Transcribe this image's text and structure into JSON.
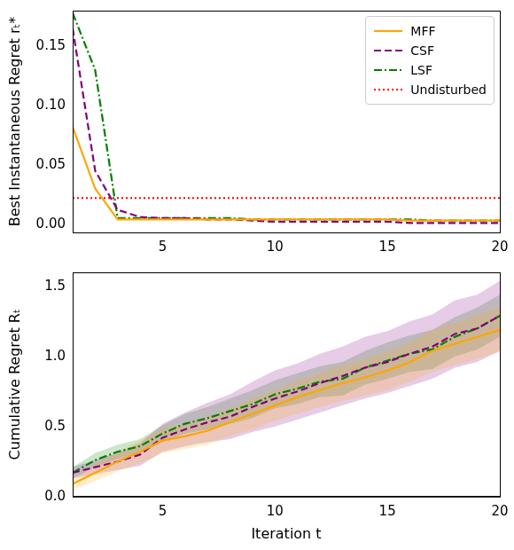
{
  "chart_data": [
    {
      "type": "line",
      "y_label": "Best Instantaneous Regret rₜ*",
      "xlim": [
        1,
        20
      ],
      "xticks": [
        5,
        10,
        15,
        20
      ],
      "ylim": [
        -0.007,
        0.18
      ],
      "yticks": [
        {
          "value": 0,
          "label": "0.00"
        },
        {
          "value": 0.05,
          "label": "0.05"
        },
        {
          "value": 0.1,
          "label": "0.10"
        },
        {
          "value": 0.15,
          "label": "0.15"
        }
      ],
      "grid": false,
      "legend": "upper right",
      "x": [
        1,
        2,
        3,
        4,
        5,
        6,
        7,
        8,
        9,
        10,
        11,
        12,
        13,
        14,
        15,
        16,
        17,
        18,
        19,
        20
      ],
      "series": [
        {
          "name": "MFF",
          "color": "#ffa500",
          "line_style": "solid",
          "values": [
            0.082,
            0.03,
            0.004,
            0.004,
            0.004,
            0.004,
            0.004,
            0.004,
            0.004,
            0.004,
            0.004,
            0.004,
            0.004,
            0.004,
            0.004,
            0.003,
            0.003,
            0.003,
            0.003,
            0.003
          ]
        },
        {
          "name": "CSF",
          "color": "#800080",
          "line_style": "dashed",
          "values": [
            0.165,
            0.045,
            0.012,
            0.006,
            0.005,
            0.005,
            0.004,
            0.004,
            0.003,
            0.002,
            0.002,
            0.002,
            0.002,
            0.002,
            0.002,
            0.001,
            0.001,
            0.001,
            0.001,
            0.001
          ]
        },
        {
          "name": "LSF",
          "color": "#008000",
          "line_style": "dashdot",
          "values": [
            0.178,
            0.13,
            0.005,
            0.005,
            0.005,
            0.005,
            0.005,
            0.005,
            0.004,
            0.004,
            0.004,
            0.004,
            0.004,
            0.004,
            0.004,
            0.004,
            0.003,
            0.003,
            0.003,
            0.003
          ]
        },
        {
          "name": "Undisturbed",
          "color": "#ff0000",
          "line_style": "dotted",
          "values": [
            0.022,
            0.022,
            0.022,
            0.022,
            0.022,
            0.022,
            0.022,
            0.022,
            0.022,
            0.022,
            0.022,
            0.022,
            0.022,
            0.022,
            0.022,
            0.022,
            0.022,
            0.022,
            0.022,
            0.022
          ]
        }
      ]
    },
    {
      "type": "line",
      "x_label": "Iteration t",
      "y_label": "Cumulative Regret Rₜ",
      "xlim": [
        1,
        20
      ],
      "xticks": [
        5,
        10,
        15,
        20
      ],
      "ylim": [
        0,
        1.6
      ],
      "yticks": [
        {
          "value": 0,
          "label": "0.0"
        },
        {
          "value": 0.5,
          "label": "0.5"
        },
        {
          "value": 1,
          "label": "1.0"
        },
        {
          "value": 1.5,
          "label": "1.5"
        }
      ],
      "grid": false,
      "x": [
        1,
        2,
        3,
        4,
        5,
        6,
        7,
        8,
        9,
        10,
        11,
        12,
        13,
        14,
        15,
        16,
        17,
        18,
        19,
        20
      ],
      "series": [
        {
          "name": "MFF",
          "color": "#ffa500",
          "line_style": "solid",
          "values": [
            0.09,
            0.17,
            0.25,
            0.32,
            0.4,
            0.43,
            0.47,
            0.53,
            0.59,
            0.65,
            0.71,
            0.76,
            0.81,
            0.85,
            0.9,
            0.96,
            1.04,
            1.09,
            1.14,
            1.19
          ],
          "lower": [
            0.05,
            0.11,
            0.18,
            0.24,
            0.31,
            0.34,
            0.37,
            0.43,
            0.48,
            0.54,
            0.59,
            0.64,
            0.68,
            0.72,
            0.76,
            0.82,
            0.89,
            0.94,
            0.98,
            1.03
          ],
          "upper": [
            0.13,
            0.23,
            0.32,
            0.4,
            0.49,
            0.52,
            0.57,
            0.63,
            0.7,
            0.76,
            0.83,
            0.88,
            0.94,
            0.98,
            1.04,
            1.1,
            1.19,
            1.24,
            1.3,
            1.35
          ]
        },
        {
          "name": "CSF",
          "color": "#800080",
          "line_style": "dashed",
          "values": [
            0.17,
            0.21,
            0.25,
            0.3,
            0.42,
            0.48,
            0.53,
            0.57,
            0.64,
            0.7,
            0.75,
            0.81,
            0.86,
            0.92,
            0.96,
            1.02,
            1.07,
            1.16,
            1.2,
            1.29
          ],
          "lower": [
            0.13,
            0.16,
            0.19,
            0.22,
            0.32,
            0.36,
            0.39,
            0.41,
            0.46,
            0.5,
            0.55,
            0.6,
            0.65,
            0.7,
            0.74,
            0.79,
            0.84,
            0.92,
            0.96,
            1.04
          ],
          "upper": [
            0.21,
            0.26,
            0.31,
            0.38,
            0.52,
            0.6,
            0.67,
            0.73,
            0.82,
            0.9,
            0.95,
            1.02,
            1.07,
            1.14,
            1.18,
            1.25,
            1.3,
            1.4,
            1.44,
            1.54
          ]
        },
        {
          "name": "LSF",
          "color": "#008000",
          "line_style": "dashdot",
          "values": [
            0.17,
            0.26,
            0.32,
            0.36,
            0.45,
            0.52,
            0.56,
            0.61,
            0.66,
            0.73,
            0.77,
            0.82,
            0.84,
            0.92,
            0.97,
            1.02,
            1.05,
            1.14,
            1.2,
            1.29
          ],
          "lower": [
            0.13,
            0.21,
            0.27,
            0.31,
            0.39,
            0.45,
            0.48,
            0.52,
            0.56,
            0.63,
            0.66,
            0.71,
            0.72,
            0.8,
            0.84,
            0.89,
            0.91,
            1.0,
            1.05,
            1.14
          ],
          "upper": [
            0.21,
            0.31,
            0.37,
            0.41,
            0.51,
            0.59,
            0.64,
            0.7,
            0.76,
            0.83,
            0.88,
            0.93,
            0.96,
            1.04,
            1.1,
            1.15,
            1.19,
            1.28,
            1.35,
            1.44
          ]
        }
      ]
    }
  ]
}
